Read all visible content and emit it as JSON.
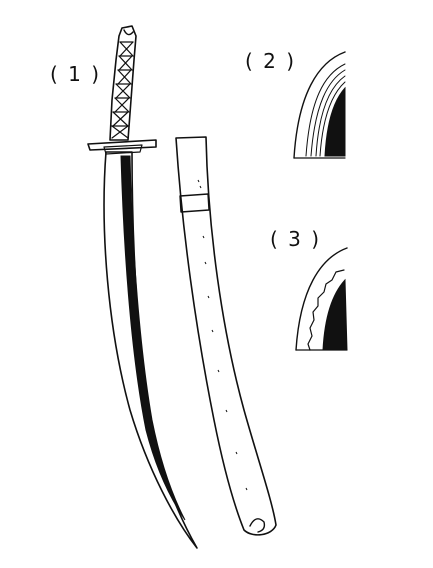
{
  "figure": {
    "labels": [
      {
        "id": "1",
        "text": "( 1 )"
      },
      {
        "id": "2",
        "text": "( 2 )"
      },
      {
        "id": "3",
        "text": "( 3 )"
      }
    ],
    "ink_color": "#111111",
    "background_color": "#ffffff"
  }
}
